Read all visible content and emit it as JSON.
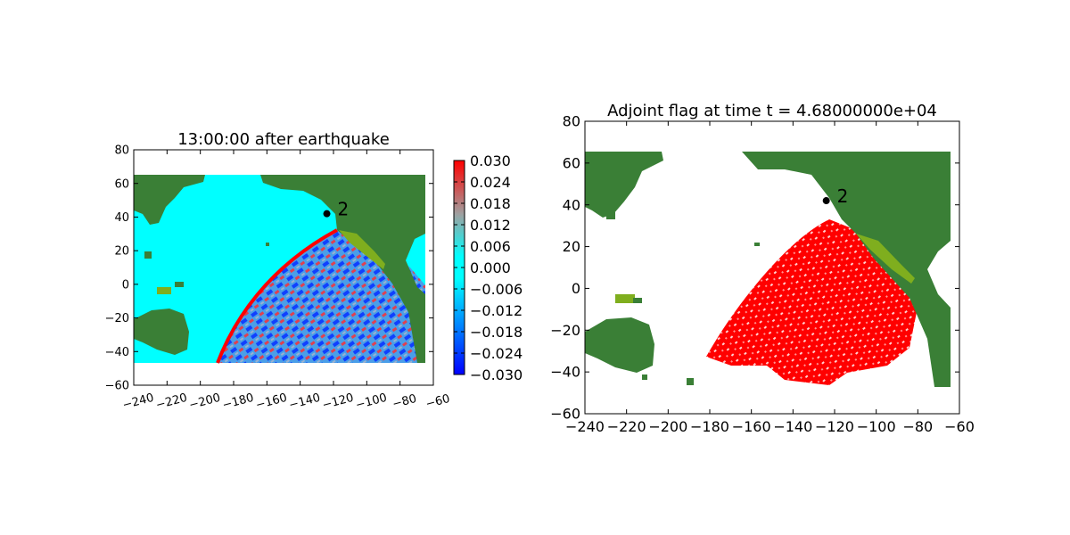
{
  "chart_data": [
    {
      "type": "heatmap",
      "title": "13:00:00 after earthquake",
      "xlabel": "",
      "ylabel": "",
      "xlim": [
        -240,
        -60
      ],
      "ylim": [
        -60,
        80
      ],
      "xticks": [
        -240,
        -220,
        -200,
        -180,
        -160,
        -140,
        -120,
        -100,
        -80,
        -60
      ],
      "yticks": [
        -60,
        -40,
        -20,
        0,
        20,
        40,
        60,
        80
      ],
      "xtick_labels": [
        "−240",
        "−220",
        "−200",
        "−180",
        "−160",
        "−140",
        "−120",
        "−100",
        "−80",
        "−60"
      ],
      "ytick_labels": [
        "−60",
        "−40",
        "−20",
        "0",
        "20",
        "40",
        "60",
        "80"
      ],
      "data_extent": {
        "x": [
          -240,
          -65
        ],
        "y": [
          -47,
          65
        ]
      },
      "colorbar": {
        "range": [
          -0.03,
          0.03
        ],
        "ticks": [
          0.03,
          0.024,
          0.018,
          0.012,
          0.006,
          0.0,
          -0.006,
          -0.012,
          -0.018,
          -0.024,
          -0.03
        ],
        "tick_labels": [
          "0.030",
          "0.024",
          "0.018",
          "0.012",
          "0.006",
          "0.000",
          "−0.006",
          "−0.012",
          "−0.018",
          "−0.024",
          "−0.030"
        ],
        "colors": [
          "#0000ff",
          "#00ffff",
          "#ff0000"
        ]
      },
      "gauge": {
        "label": "2",
        "x": -124,
        "y": 42
      },
      "grid": false
    },
    {
      "type": "heatmap",
      "title": "Adjoint flag at time t = 4.68000000e+04",
      "xlabel": "",
      "ylabel": "",
      "xlim": [
        -240,
        -60
      ],
      "ylim": [
        -60,
        80
      ],
      "xticks": [
        -240,
        -220,
        -200,
        -180,
        -160,
        -140,
        -120,
        -100,
        -80,
        -60
      ],
      "yticks": [
        -60,
        -40,
        -20,
        0,
        20,
        40,
        60,
        80
      ],
      "xtick_labels": [
        "−240",
        "−220",
        "−200",
        "−180",
        "−160",
        "−140",
        "−120",
        "−100",
        "−80",
        "−60"
      ],
      "ytick_labels": [
        "−60",
        "−40",
        "−20",
        "0",
        "20",
        "40",
        "60",
        "80"
      ],
      "data_extent": {
        "x": [
          -240,
          -65
        ],
        "y": [
          -47,
          65
        ]
      },
      "gauge": {
        "label": "2",
        "x": -124,
        "y": 42
      },
      "grid": false
    }
  ],
  "colors": {
    "land": "#3a7f36",
    "coast": "#7fae1e",
    "ocean_left": "#00ffff",
    "flag": "#ff0000",
    "gauge": "#000000"
  }
}
